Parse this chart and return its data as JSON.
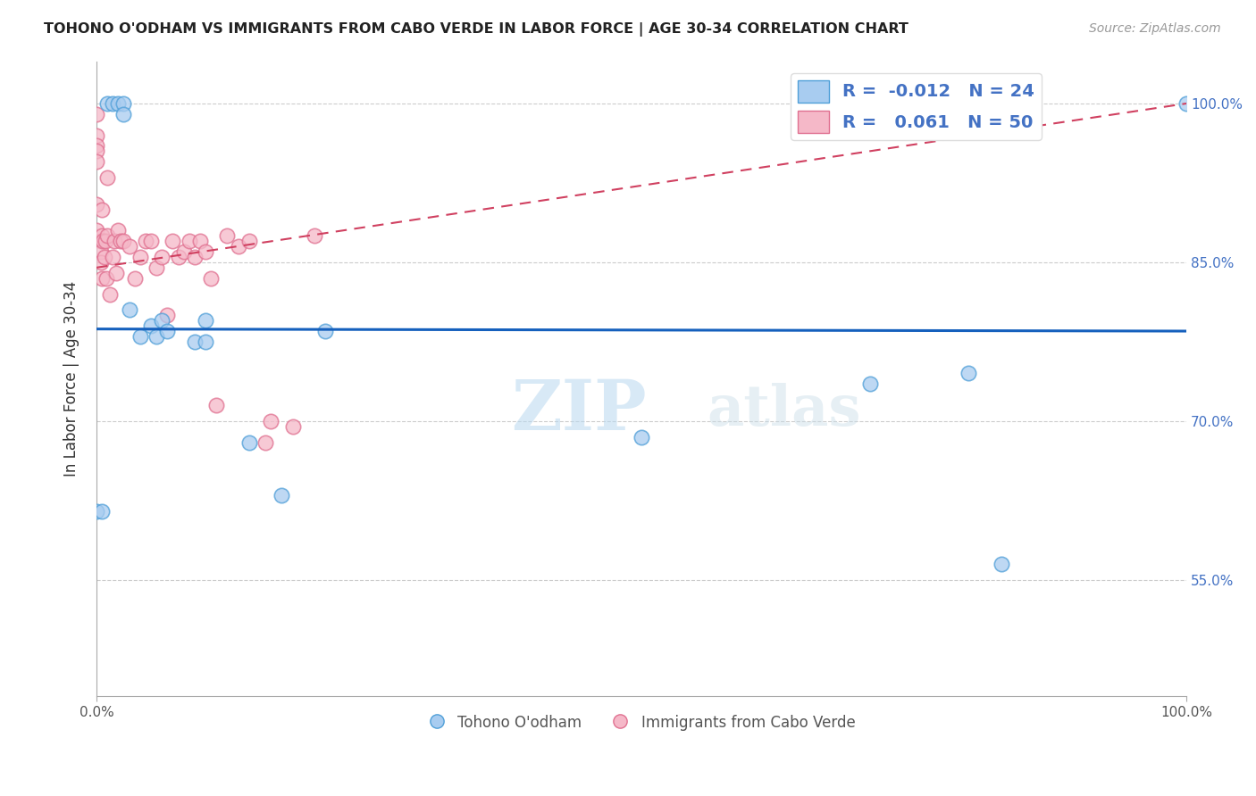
{
  "title": "TOHONO O'ODHAM VS IMMIGRANTS FROM CABO VERDE IN LABOR FORCE | AGE 30-34 CORRELATION CHART",
  "source": "Source: ZipAtlas.com",
  "ylabel": "In Labor Force | Age 30-34",
  "xlim": [
    0,
    1.0
  ],
  "ylim": [
    0.44,
    1.04
  ],
  "yticks": [
    0.55,
    0.7,
    0.85,
    1.0
  ],
  "ytick_labels": [
    "55.0%",
    "70.0%",
    "85.0%",
    "100.0%"
  ],
  "xtick_labels": [
    "0.0%",
    "100.0%"
  ],
  "xticks": [
    0.0,
    1.0
  ],
  "legend_r_blue": "-0.012",
  "legend_n_blue": "24",
  "legend_r_pink": "0.061",
  "legend_n_pink": "50",
  "blue_fill": "#a8ccf0",
  "blue_edge": "#4f9fd8",
  "pink_fill": "#f5b8c8",
  "pink_edge": "#e07090",
  "trend_blue_color": "#1560bd",
  "trend_pink_color": "#d04060",
  "watermark": "ZIPatlas",
  "blue_scatter_x": [
    0.0,
    0.005,
    0.01,
    0.015,
    0.02,
    0.025,
    0.025,
    0.03,
    0.04,
    0.05,
    0.055,
    0.06,
    0.065,
    0.09,
    0.1,
    0.1,
    0.14,
    0.17,
    0.21,
    0.5,
    0.71,
    0.8,
    0.83,
    1.0
  ],
  "blue_scatter_y": [
    0.615,
    0.615,
    1.0,
    1.0,
    1.0,
    1.0,
    0.99,
    0.805,
    0.78,
    0.79,
    0.78,
    0.795,
    0.785,
    0.775,
    0.775,
    0.795,
    0.68,
    0.63,
    0.785,
    0.685,
    0.735,
    0.745,
    0.565,
    1.0
  ],
  "pink_scatter_x": [
    0.0,
    0.0,
    0.0,
    0.0,
    0.0,
    0.0,
    0.0,
    0.004,
    0.004,
    0.004,
    0.005,
    0.005,
    0.005,
    0.006,
    0.007,
    0.008,
    0.009,
    0.01,
    0.01,
    0.012,
    0.015,
    0.016,
    0.018,
    0.02,
    0.022,
    0.025,
    0.03,
    0.035,
    0.04,
    0.045,
    0.05,
    0.055,
    0.06,
    0.065,
    0.07,
    0.075,
    0.08,
    0.085,
    0.09,
    0.095,
    0.1,
    0.105,
    0.11,
    0.12,
    0.13,
    0.14,
    0.155,
    0.16,
    0.18,
    0.2
  ],
  "pink_scatter_y": [
    0.99,
    0.97,
    0.96,
    0.955,
    0.945,
    0.905,
    0.88,
    0.87,
    0.86,
    0.85,
    0.835,
    0.9,
    0.875,
    0.87,
    0.855,
    0.87,
    0.835,
    0.93,
    0.875,
    0.82,
    0.855,
    0.87,
    0.84,
    0.88,
    0.87,
    0.87,
    0.865,
    0.835,
    0.855,
    0.87,
    0.87,
    0.845,
    0.855,
    0.8,
    0.87,
    0.855,
    0.86,
    0.87,
    0.855,
    0.87,
    0.86,
    0.835,
    0.715,
    0.875,
    0.865,
    0.87,
    0.68,
    0.7,
    0.695,
    0.875
  ],
  "trend_blue_y_start": 0.787,
  "trend_blue_y_end": 0.785,
  "trend_pink_y_start": 0.845,
  "trend_pink_y_end": 1.0
}
